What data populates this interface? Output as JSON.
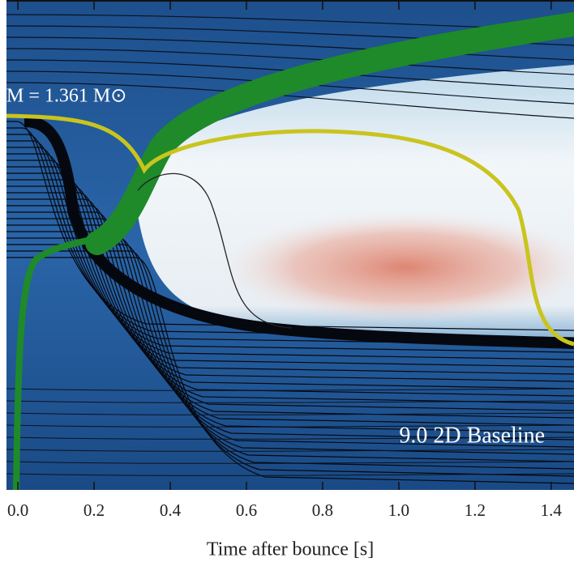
{
  "chart_data": {
    "type": "line",
    "xlabel": "Time after bounce [s]",
    "annotations": [
      "M = 1.361 M⊙",
      "9.0 2D Baseline"
    ],
    "xlim": [
      -0.03,
      1.46
    ],
    "xticks": [
      {
        "value": 0,
        "label": "0.0"
      },
      0.2,
      0.4,
      0.6,
      0.8,
      {
        "value": 1,
        "label": "1.0"
      },
      1.2,
      1.4
    ]
  }
}
